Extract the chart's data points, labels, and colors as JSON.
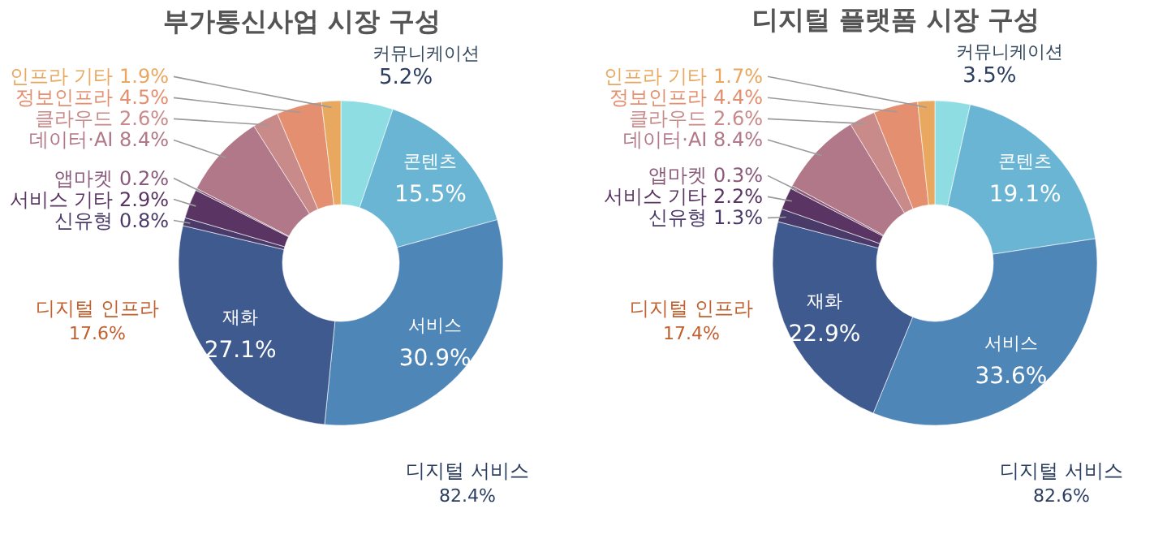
{
  "chart_data": [
    {
      "type": "donut",
      "title": "부가통신사업 시장 구성",
      "categories": [
        "커뮤니케이션",
        "콘텐츠",
        "서비스",
        "재화",
        "신유형",
        "서비스 기타",
        "앱마켓",
        "데이터·AI",
        "클라우드",
        "정보인프라",
        "인프라 기타"
      ],
      "values": [
        5.2,
        15.5,
        30.9,
        27.1,
        0.8,
        2.9,
        0.2,
        8.4,
        2.6,
        4.5,
        1.9
      ],
      "value_labels": [
        "5.2%",
        "15.5%",
        "30.9%",
        "27.1%",
        "0.8%",
        "2.9%",
        "0.2%",
        "8.4%",
        "2.6%",
        "4.5%",
        "1.9%"
      ],
      "colors": [
        "#8ddde3",
        "#6ab4d4",
        "#4f86b8",
        "#3f5a8e",
        "#4a3a6a",
        "#5a3462",
        "#8a5a7a",
        "#b07888",
        "#c98a8a",
        "#e49070",
        "#e8a860"
      ],
      "annotations": [
        "디지털 인프라 17.6%",
        "디지털 서비스 82.4%"
      ]
    },
    {
      "type": "donut",
      "title": "디지털 플랫폼 시장 구성",
      "categories": [
        "커뮤니케이션",
        "콘텐츠",
        "서비스",
        "재화",
        "신유형",
        "서비스 기타",
        "앱마켓",
        "데이터·AI",
        "클라우드",
        "정보인프라",
        "인프라 기타"
      ],
      "values": [
        3.5,
        19.1,
        33.6,
        22.9,
        1.3,
        2.2,
        0.3,
        8.4,
        2.6,
        4.4,
        1.7
      ],
      "value_labels": [
        "3.5%",
        "19.1%",
        "33.6%",
        "22.9%",
        "1.3%",
        "2.2%",
        "0.3%",
        "8.4%",
        "2.6%",
        "4.4%",
        "1.7%"
      ],
      "colors": [
        "#8ddde3",
        "#6ab4d4",
        "#4f86b8",
        "#3f5a8e",
        "#4a3a6a",
        "#5a3462",
        "#8a5a7a",
        "#b07888",
        "#c98a8a",
        "#e49070",
        "#e8a860"
      ],
      "annotations": [
        "디지털 인프라 17.4%",
        "디지털 서비스 82.6%"
      ]
    }
  ]
}
